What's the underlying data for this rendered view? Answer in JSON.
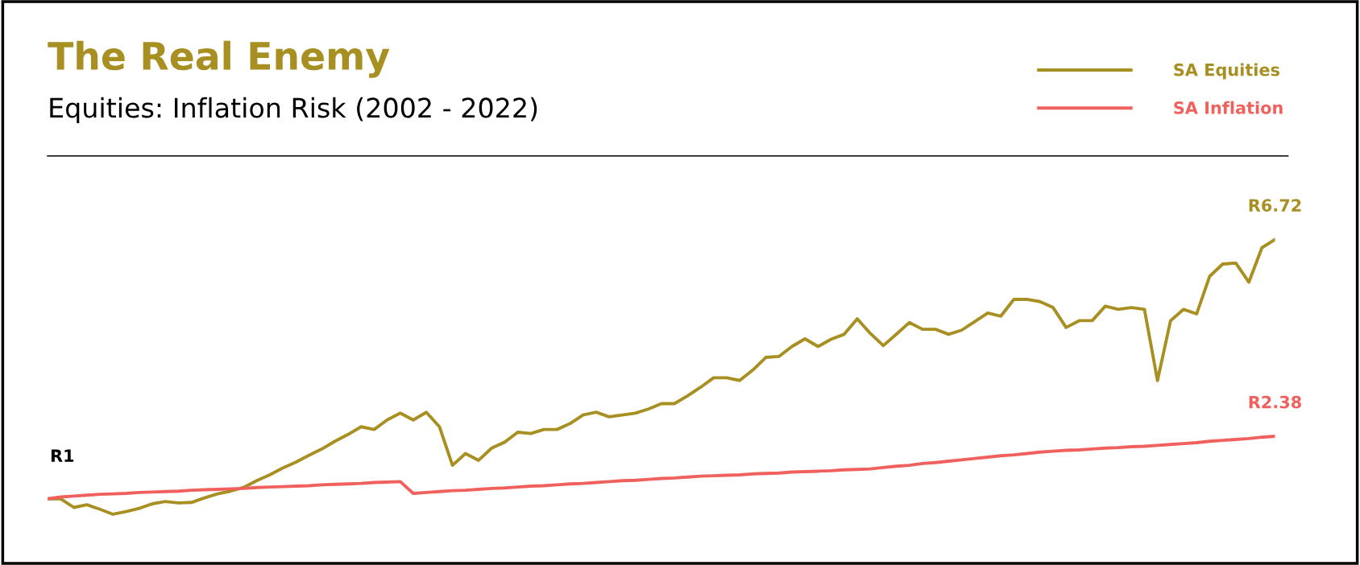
{
  "chart_data": {
    "type": "line",
    "title": "The Real Enemy",
    "subtitle": "Equities: Inflation Risk (2002 - 2022)",
    "categories": [
      null,
      null,
      null,
      null,
      null,
      null,
      null,
      null,
      null,
      null,
      null,
      null,
      null,
      null,
      null,
      null,
      null,
      null,
      null,
      null,
      null,
      null,
      null,
      null,
      null,
      null,
      null,
      null,
      null,
      null,
      null,
      null,
      null,
      null,
      null,
      null,
      null,
      null,
      null,
      null,
      null,
      null,
      null,
      null,
      null,
      null,
      null,
      null,
      null,
      null,
      null,
      null,
      null,
      null,
      null,
      null,
      null,
      null,
      null,
      null,
      null,
      null,
      null,
      null,
      null,
      null,
      null,
      null,
      null,
      null,
      null,
      null,
      null,
      null,
      null,
      null,
      null,
      null,
      null,
      null,
      null,
      null,
      null,
      null,
      null,
      null,
      null,
      null,
      null,
      null,
      null,
      null,
      null,
      null,
      null
    ],
    "series": [
      {
        "name": "SA Equities",
        "color": "#a88f22",
        "values": [
          1.0,
          1.0,
          0.81,
          0.87,
          0.77,
          0.66,
          0.72,
          0.79,
          0.89,
          0.94,
          0.91,
          0.92,
          1.02,
          1.11,
          1.17,
          1.25,
          1.4,
          1.53,
          1.68,
          1.81,
          1.96,
          2.1,
          2.27,
          2.42,
          2.59,
          2.53,
          2.74,
          2.89,
          2.74,
          2.91,
          2.59,
          1.74,
          2.0,
          1.85,
          2.12,
          2.25,
          2.47,
          2.44,
          2.53,
          2.53,
          2.66,
          2.85,
          2.91,
          2.81,
          2.85,
          2.89,
          2.98,
          3.1,
          3.1,
          3.27,
          3.46,
          3.67,
          3.67,
          3.61,
          3.84,
          4.12,
          4.14,
          4.36,
          4.53,
          4.36,
          4.52,
          4.63,
          4.97,
          4.65,
          4.38,
          4.63,
          4.89,
          4.74,
          4.74,
          4.63,
          4.72,
          4.91,
          5.1,
          5.03,
          5.4,
          5.4,
          5.35,
          5.22,
          4.78,
          4.93,
          4.93,
          5.25,
          5.18,
          5.22,
          5.18,
          3.61,
          4.93,
          5.18,
          5.08,
          5.91,
          6.18,
          6.2,
          5.78,
          6.54,
          6.72
        ],
        "value_labels": [
          null,
          null,
          null,
          null,
          null,
          null,
          null,
          null,
          null,
          null,
          null,
          null,
          null,
          null,
          null,
          null,
          null,
          null,
          null,
          null,
          null,
          null,
          null,
          null,
          null,
          null,
          null,
          null,
          null,
          null,
          null,
          null,
          null,
          null,
          null,
          null,
          null,
          null,
          null,
          null,
          null,
          null,
          null,
          null,
          null,
          null,
          null,
          null,
          null,
          null,
          null,
          null,
          null,
          null,
          null,
          null,
          null,
          null,
          null,
          null,
          null,
          null,
          null,
          null,
          null,
          null,
          null,
          null,
          null,
          null,
          null,
          null,
          null,
          null,
          null,
          null,
          null,
          null,
          null,
          null,
          null,
          null,
          null,
          null,
          null,
          null,
          null,
          null,
          null,
          null,
          null,
          null,
          null,
          null,
          "R6.72"
        ]
      },
      {
        "name": "SA Inflation",
        "color": "#f0605d",
        "values": [
          1.0,
          1.04,
          1.06,
          1.08,
          1.1,
          1.11,
          1.12,
          1.14,
          1.15,
          1.16,
          1.17,
          1.19,
          1.2,
          1.21,
          1.22,
          1.23,
          1.25,
          1.26,
          1.27,
          1.28,
          1.29,
          1.31,
          1.32,
          1.33,
          1.34,
          1.36,
          1.37,
          1.38,
          1.12,
          1.14,
          1.16,
          1.18,
          1.19,
          1.21,
          1.23,
          1.24,
          1.26,
          1.28,
          1.29,
          1.31,
          1.33,
          1.34,
          1.36,
          1.38,
          1.4,
          1.41,
          1.43,
          1.45,
          1.46,
          1.48,
          1.5,
          1.51,
          1.52,
          1.53,
          1.55,
          1.56,
          1.57,
          1.59,
          1.6,
          1.61,
          1.62,
          1.64,
          1.65,
          1.66,
          1.69,
          1.72,
          1.74,
          1.78,
          1.8,
          1.83,
          1.86,
          1.89,
          1.92,
          1.95,
          1.97,
          2.0,
          2.03,
          2.05,
          2.07,
          2.08,
          2.1,
          2.12,
          2.13,
          2.15,
          2.16,
          2.18,
          2.2,
          2.22,
          2.24,
          2.27,
          2.29,
          2.31,
          2.33,
          2.36,
          2.38
        ],
        "value_labels": [
          null,
          null,
          null,
          null,
          null,
          null,
          null,
          null,
          null,
          null,
          null,
          null,
          null,
          null,
          null,
          null,
          null,
          null,
          null,
          null,
          null,
          null,
          null,
          null,
          null,
          null,
          null,
          null,
          null,
          null,
          null,
          null,
          null,
          null,
          null,
          null,
          null,
          null,
          null,
          null,
          null,
          null,
          null,
          null,
          null,
          null,
          null,
          null,
          null,
          null,
          null,
          null,
          null,
          null,
          null,
          null,
          null,
          null,
          null,
          null,
          null,
          null,
          null,
          null,
          null,
          null,
          null,
          null,
          null,
          null,
          null,
          null,
          null,
          null,
          null,
          null,
          null,
          null,
          null,
          null,
          null,
          null,
          null,
          null,
          null,
          null,
          null,
          null,
          null,
          null,
          null,
          null,
          null,
          null,
          "R2.38"
        ]
      }
    ],
    "annotations": [
      {
        "text": "R1",
        "y": 1
      }
    ],
    "tick_labels": false,
    "grid": false,
    "legend": "top right",
    "line_style": "solid",
    "marker": "none"
  }
}
